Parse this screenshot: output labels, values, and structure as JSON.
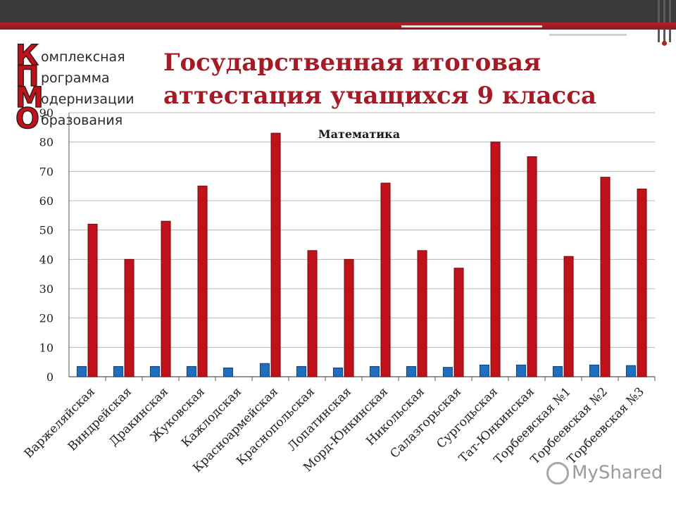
{
  "slide": {
    "title": "Государственная итоговая аттестация учащихся 9 класса",
    "logo": {
      "letters": [
        "К",
        "П",
        "М",
        "О"
      ],
      "words": [
        "омплексная",
        "рограмма",
        "одернизации",
        "бразования"
      ]
    },
    "watermark": "MyShared"
  },
  "colors": {
    "accent": "#b3202a",
    "bar_red": "#c0121b",
    "bar_blue": "#1e6fc0",
    "topbar": "#3a3a3a"
  },
  "chart_data": {
    "type": "bar",
    "title": "Математика",
    "categories": [
      "Варжеляйская",
      "Виндрейская",
      "Дракинская",
      "Жуковская",
      "Кажлодская",
      "Красноармейская",
      "Краснопольская",
      "Лопатинская",
      "Морд-Юнкинская",
      "Никольская",
      "Салазгорьская",
      "Сургодьская",
      "Тат-Юнкинская",
      "Торбеевская №1",
      "Торбеевская №2",
      "Торбеевская №3"
    ],
    "series": [
      {
        "values": [
          3.5,
          3.5,
          3.5,
          3.5,
          3,
          4.5,
          3.5,
          3,
          3.5,
          3.5,
          3.2,
          4,
          4,
          3.5,
          4,
          3.8
        ],
        "color": "#1e6fc0"
      },
      {
        "values": [
          52,
          40,
          53,
          65,
          0,
          83,
          43,
          40,
          66,
          43,
          37,
          80,
          75,
          41,
          68,
          64
        ],
        "color": "#c0121b"
      }
    ],
    "yticks": [
      0,
      10,
      20,
      30,
      40,
      50,
      60,
      70,
      80,
      90
    ],
    "ylim": [
      0,
      90
    ],
    "grid": true,
    "legend": "none",
    "xlabel": "",
    "ylabel": ""
  }
}
